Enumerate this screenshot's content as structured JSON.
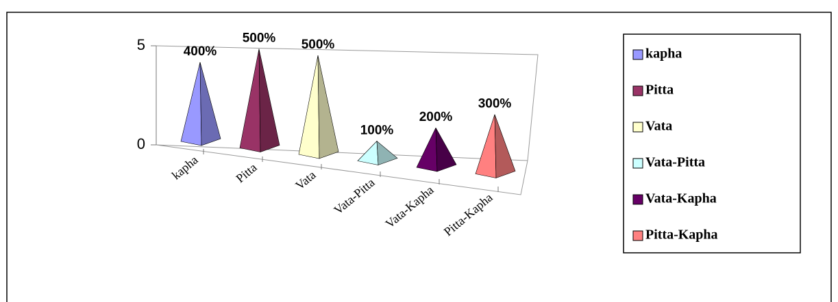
{
  "chart_data": {
    "type": "pyramid",
    "categories": [
      "kapha",
      "Pitta",
      "Vata",
      "Vata-Pitta",
      "Vata-Kapha",
      "Pitta-Kapha"
    ],
    "values": [
      4,
      5,
      5,
      1,
      2,
      3
    ],
    "value_labels": [
      "400%",
      "500%",
      "500%",
      "100%",
      "200%",
      "300%"
    ],
    "colors": [
      "#9999ff",
      "#993366",
      "#ffffcc",
      "#ccffff",
      "#660066",
      "#ff8080"
    ],
    "ylim": [
      0,
      5
    ],
    "yticks": [
      0,
      5
    ],
    "legend": "right"
  }
}
